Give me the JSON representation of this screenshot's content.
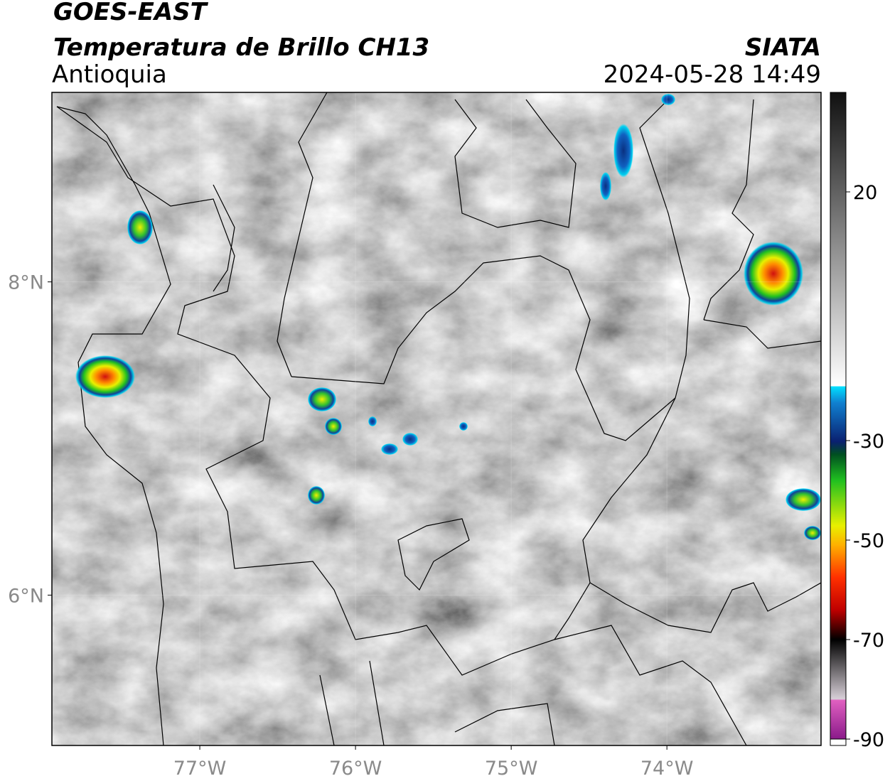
{
  "header": {
    "title": "GOES-EAST",
    "subtitle": "Temperatura de Brillo CH13",
    "region": "Antioquia",
    "source": "SIATA",
    "datetime": "2024-05-28 14:49"
  },
  "map": {
    "xlim": [
      -77.95,
      -73.01
    ],
    "ylim": [
      5.04,
      9.21
    ],
    "xticks": [
      {
        "value": -77,
        "label": "77°W"
      },
      {
        "value": -76,
        "label": "76°W"
      },
      {
        "value": -75,
        "label": "75°W"
      },
      {
        "value": -74,
        "label": "74°W"
      }
    ],
    "yticks": [
      {
        "value": 8,
        "label": "8°N"
      },
      {
        "value": 6,
        "label": "6°N"
      }
    ],
    "grid": true
  },
  "colorbar": {
    "lim": [
      -90,
      40
    ],
    "ticks": [
      20,
      -30,
      -50,
      -70,
      -90
    ]
  }
}
